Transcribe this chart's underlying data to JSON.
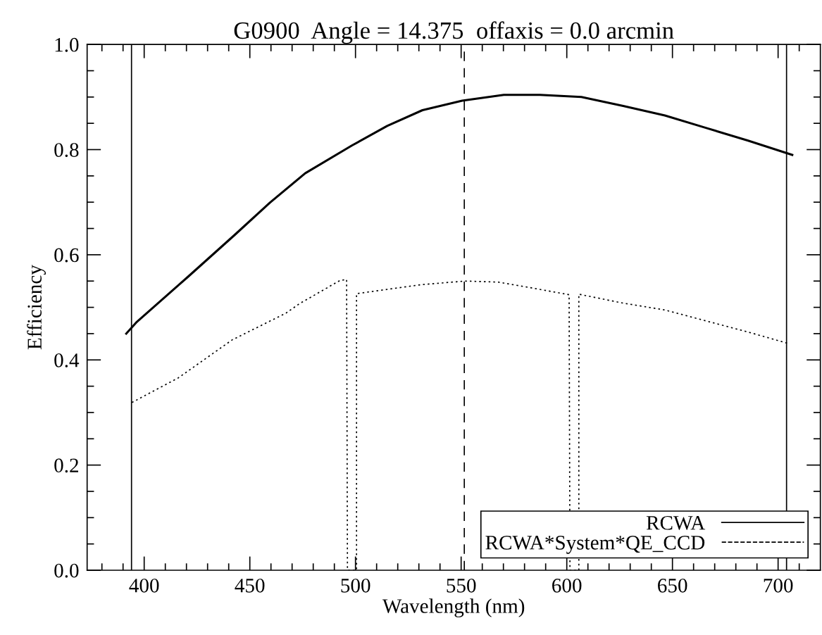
{
  "chart_data": {
    "type": "line",
    "title": "G0900  Angle = 14.375  offaxis = 0.0 arcmin",
    "xlabel": "Wavelength (nm)",
    "ylabel": "Efficiency",
    "series": [
      {
        "name": "RCWA",
        "color": "#000000",
        "line_style": "solid",
        "x": [
          391.5,
          396.2,
          420.7,
          442.9,
          459.5,
          476.2,
          498.4,
          515.0,
          531.7,
          550.5,
          570.2,
          587.3,
          606.9,
          626.7,
          646.4,
          666.1,
          685.8,
          706.7
        ],
        "values": [
          0.45,
          0.471,
          0.558,
          0.638,
          0.699,
          0.755,
          0.808,
          0.845,
          0.875,
          0.893,
          0.904,
          0.904,
          0.9,
          0.883,
          0.865,
          0.841,
          0.817,
          0.79
        ]
      },
      {
        "name": "RCWA*System*QE_CCD",
        "color": "#000000",
        "line_style": "dotted",
        "x": [
          394.2,
          416.2,
          441.6,
          467.1,
          473.5,
          492.6,
          495.8,
          496.2,
          500.5,
          500.5,
          530.8,
          551.8,
          567.6,
          583.3,
          601.1,
          601.5,
          605.7,
          605.7,
          626.7,
          646.4,
          666.1,
          685.8,
          704.2
        ],
        "values": [
          0.319,
          0.366,
          0.438,
          0.489,
          0.507,
          0.551,
          0.553,
          0,
          0,
          0.526,
          0.543,
          0.55,
          0.548,
          0.537,
          0.524,
          0,
          0,
          0.525,
          0.508,
          0.495,
          0.474,
          0.453,
          0.432
        ]
      }
    ],
    "ref_lines": [
      {
        "axis": "x",
        "value": 394,
        "color": "#000000",
        "line_style": "solid"
      },
      {
        "axis": "x",
        "value": 551.5,
        "color": "#000000",
        "line_style": "dashed"
      },
      {
        "axis": "x",
        "value": 704,
        "color": "#000000",
        "line_style": "solid"
      }
    ],
    "xlim": [
      373,
      720
    ],
    "ylim": [
      0,
      1.0
    ],
    "xticks": [
      {
        "value": 380,
        "label": null
      },
      {
        "value": 390,
        "label": null
      },
      400,
      {
        "value": 410,
        "label": null
      },
      {
        "value": 420,
        "label": null
      },
      {
        "value": 430,
        "label": null
      },
      {
        "value": 440,
        "label": null
      },
      450,
      {
        "value": 460,
        "label": null
      },
      {
        "value": 470,
        "label": null
      },
      {
        "value": 480,
        "label": null
      },
      {
        "value": 490,
        "label": null
      },
      500,
      {
        "value": 510,
        "label": null
      },
      {
        "value": 520,
        "label": null
      },
      {
        "value": 530,
        "label": null
      },
      {
        "value": 540,
        "label": null
      },
      550,
      {
        "value": 560,
        "label": null
      },
      {
        "value": 570,
        "label": null
      },
      {
        "value": 580,
        "label": null
      },
      {
        "value": 590,
        "label": null
      },
      600,
      {
        "value": 610,
        "label": null
      },
      {
        "value": 620,
        "label": null
      },
      {
        "value": 630,
        "label": null
      },
      {
        "value": 640,
        "label": null
      },
      650,
      {
        "value": 660,
        "label": null
      },
      {
        "value": 670,
        "label": null
      },
      {
        "value": 680,
        "label": null
      },
      {
        "value": 690,
        "label": null
      },
      700,
      {
        "value": 710,
        "label": null
      }
    ],
    "yticks": [
      {
        "value": 0,
        "label": "0.0"
      },
      {
        "value": 0.05,
        "label": null
      },
      {
        "value": 0.1,
        "label": null
      },
      {
        "value": 0.15,
        "label": null
      },
      0.2,
      {
        "value": 0.25,
        "label": null
      },
      {
        "value": 0.3,
        "label": null
      },
      {
        "value": 0.35,
        "label": null
      },
      0.4,
      {
        "value": 0.45,
        "label": null
      },
      {
        "value": 0.5,
        "label": null
      },
      {
        "value": 0.55,
        "label": null
      },
      0.6,
      {
        "value": 0.65,
        "label": null
      },
      {
        "value": 0.7,
        "label": null
      },
      {
        "value": 0.75,
        "label": null
      },
      0.8,
      {
        "value": 0.85,
        "label": null
      },
      {
        "value": 0.9,
        "label": null
      },
      {
        "value": 0.95,
        "label": null
      },
      {
        "value": 1.0,
        "label": "1.0"
      }
    ],
    "grid": false,
    "legend": "bottom right"
  }
}
